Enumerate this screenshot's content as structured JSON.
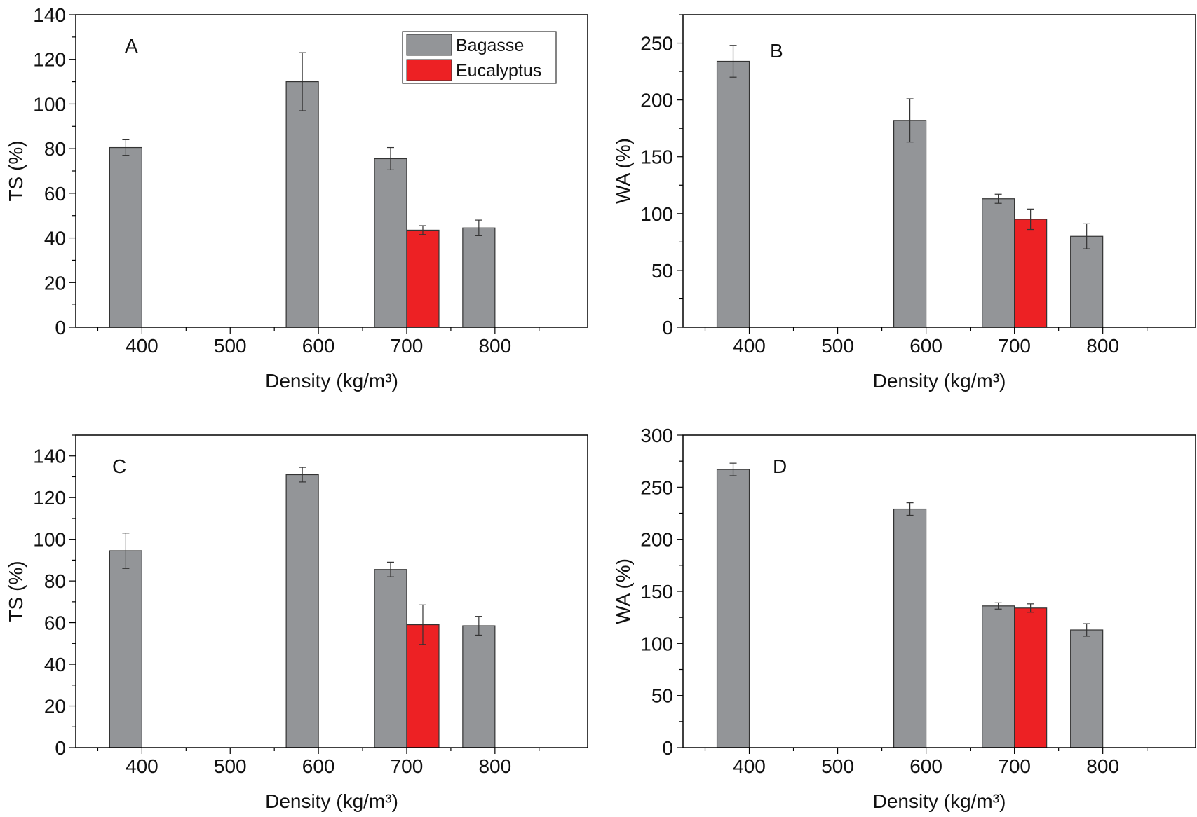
{
  "legend": {
    "bagasse": "Bagasse",
    "eucalyptus": "Eucalyptus"
  },
  "colors": {
    "bagasse": "#939598",
    "eucalyptus": "#ed2124"
  },
  "chart_data": [
    {
      "type": "bar",
      "panel": "A",
      "xlabel": "Density (kg/m³)",
      "ylabel": "TS (%)",
      "categories": [
        "400",
        "500",
        "600",
        "700",
        "800"
      ],
      "ylim": [
        0,
        140
      ],
      "yticks": [
        0,
        20,
        40,
        60,
        80,
        100,
        120,
        140
      ],
      "series": [
        {
          "name": "Bagasse",
          "x": [
            400,
            600,
            700,
            800
          ],
          "values": [
            80.5,
            110,
            75.5,
            44.5
          ],
          "err": [
            3.5,
            13,
            5,
            3.5
          ]
        },
        {
          "name": "Eucalyptus",
          "x": [
            700
          ],
          "values": [
            43.5
          ],
          "err": [
            2
          ]
        }
      ],
      "legend": true
    },
    {
      "type": "bar",
      "panel": "B",
      "xlabel": "Density (kg/m³)",
      "ylabel": "WA (%)",
      "categories": [
        "400",
        "500",
        "600",
        "700",
        "800"
      ],
      "ylim": [
        0,
        275
      ],
      "yticks": [
        0,
        50,
        100,
        150,
        200,
        250
      ],
      "series": [
        {
          "name": "Bagasse",
          "x": [
            400,
            600,
            700,
            800
          ],
          "values": [
            234,
            182,
            113,
            80
          ],
          "err": [
            14,
            19,
            4,
            11
          ]
        },
        {
          "name": "Eucalyptus",
          "x": [
            700
          ],
          "values": [
            95
          ],
          "err": [
            9
          ]
        }
      ],
      "legend": false
    },
    {
      "type": "bar",
      "panel": "C",
      "xlabel": "Density (kg/m³)",
      "ylabel": "TS (%)",
      "categories": [
        "400",
        "500",
        "600",
        "700",
        "800"
      ],
      "ylim": [
        0,
        150
      ],
      "yticks": [
        0,
        20,
        40,
        60,
        80,
        100,
        120,
        140
      ],
      "series": [
        {
          "name": "Bagasse",
          "x": [
            400,
            600,
            700,
            800
          ],
          "values": [
            94.5,
            131,
            85.5,
            58.5
          ],
          "err": [
            8.5,
            3.5,
            3.5,
            4.5
          ]
        },
        {
          "name": "Eucalyptus",
          "x": [
            700
          ],
          "values": [
            59
          ],
          "err": [
            9.5
          ]
        }
      ],
      "legend": false
    },
    {
      "type": "bar",
      "panel": "D",
      "xlabel": "Density (kg/m³)",
      "ylabel": "WA (%)",
      "categories": [
        "400",
        "500",
        "600",
        "700",
        "800"
      ],
      "ylim": [
        0,
        300
      ],
      "yticks": [
        0,
        50,
        100,
        150,
        200,
        250,
        300
      ],
      "series": [
        {
          "name": "Bagasse",
          "x": [
            400,
            600,
            700,
            800
          ],
          "values": [
            267,
            229,
            136,
            113
          ],
          "err": [
            6,
            6,
            3,
            6
          ]
        },
        {
          "name": "Eucalyptus",
          "x": [
            700
          ],
          "values": [
            134
          ],
          "err": [
            4
          ]
        }
      ],
      "legend": false
    }
  ]
}
